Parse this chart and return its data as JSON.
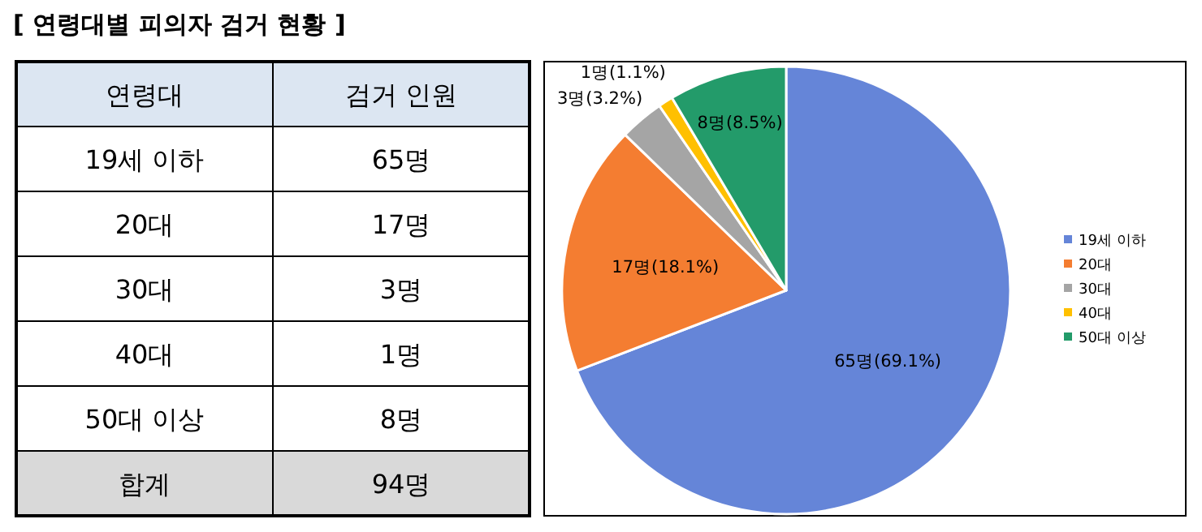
{
  "chart_data": {
    "type": "pie",
    "title": "[ 연령대별 피의자 검거 현황 ]",
    "annotations": [
      "연령대",
      "검거 인원",
      "65명",
      "17명",
      "3명",
      "1명",
      "8명",
      "합계",
      "94명"
    ],
    "categories": [
      "19세 이하",
      "20대",
      "30대",
      "40대",
      "50대 이상"
    ],
    "values": [
      65,
      17,
      3,
      1,
      8
    ],
    "colors": [
      "#6585d8",
      "#f47d31",
      "#a5a5a5",
      "#ffc000",
      "#239b6a"
    ],
    "value_labels": [
      "65명(69.1%)",
      "17명(18.1%)",
      "3명(3.2%)",
      "1명(1.1%)",
      "8명(8.5%)"
    ],
    "legend": "right"
  }
}
